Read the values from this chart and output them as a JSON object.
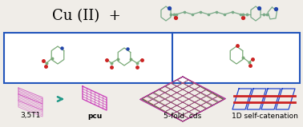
{
  "background_color": "#f0ede8",
  "box_color": "#2255bb",
  "arrow_color": "#229988",
  "bond_color_top": "#7aaa88",
  "N_color": "#2244aa",
  "O_color": "#cc2222",
  "mol_bond_color": "#7aaa77",
  "labels": [
    "3,5T1",
    "pcu",
    "5-fold  cds",
    "1D self-catenation"
  ],
  "label_fontsize": 6.5,
  "label_bold": [
    false,
    true,
    false,
    false
  ],
  "title_cu": "Cu (II)  +",
  "title_fontsize": 13,
  "net_color_magenta": "#cc44bb",
  "net_colors_5fold": [
    "#dd2222",
    "#22aa22",
    "#2244dd",
    "#dd8822",
    "#aa22aa"
  ],
  "net_color_blue": "#2244cc",
  "net_color_red": "#cc2222"
}
